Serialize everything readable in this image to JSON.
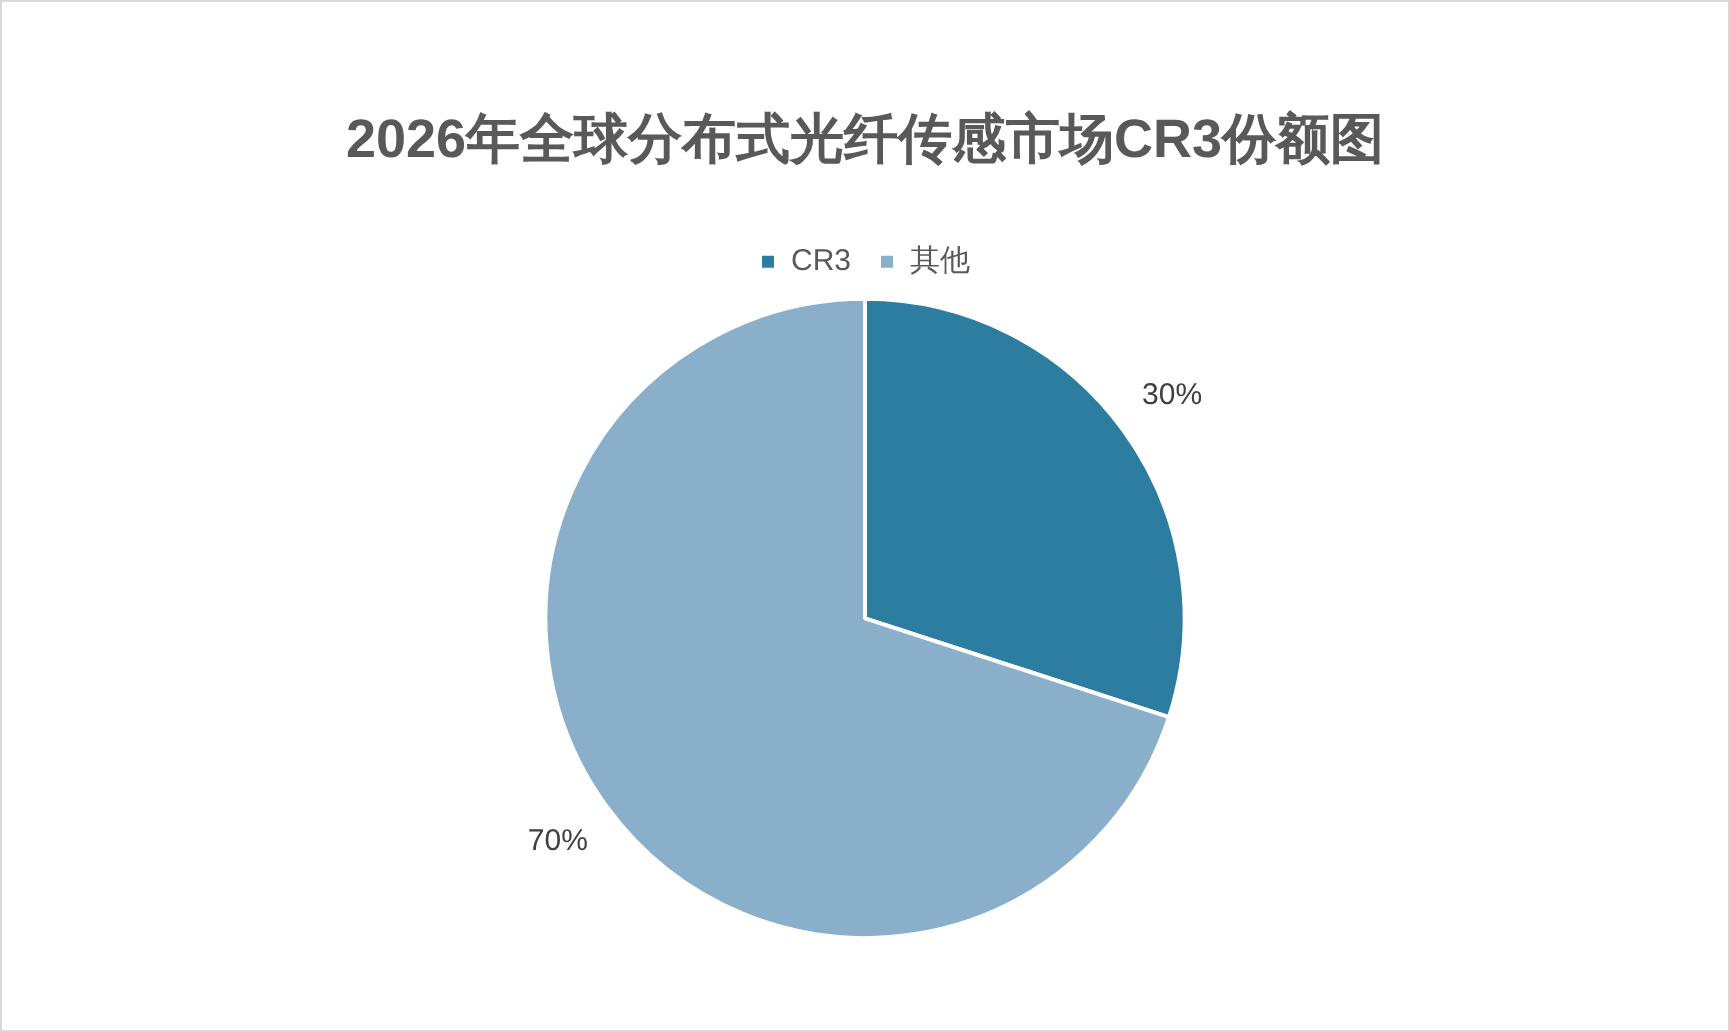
{
  "chart_data": {
    "type": "pie",
    "title": "2026年全球分布式光纤传感市场CR3份额图",
    "categories": [
      "CR3",
      "其他"
    ],
    "values": [
      30,
      70
    ],
    "colors": [
      "#2c7da0",
      "#8aafcb"
    ],
    "value_labels": [
      "30%",
      "70%"
    ],
    "legend": "top"
  }
}
